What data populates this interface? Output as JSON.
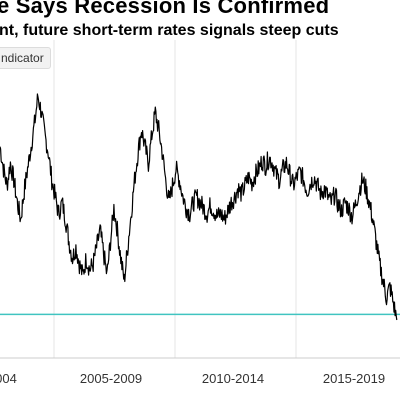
{
  "header": {
    "title": "e Says Recession Is Confirmed",
    "subtitle": "nt, future short-term rates signals steep cuts"
  },
  "legend": {
    "label": "ndicator"
  },
  "colors": {
    "series": "#000000",
    "threshold": "#40c4c0",
    "grid": "#e6e6e6",
    "axis": "#cccccc"
  },
  "chart_data": {
    "type": "line",
    "title": "e Says Recession Is Confirmed",
    "subtitle": "nt, future short-term rates signals steep cuts",
    "x_tick_labels": [
      "004",
      "2005-2009",
      "2010-2014",
      "2015-2019"
    ],
    "xlim": [
      2003.0,
      2020.3
    ],
    "ylim": [
      -2.0,
      3.5
    ],
    "grid": "vertical",
    "threshold_line": {
      "y": -1.4
    },
    "series": [
      {
        "name": "",
        "x": [
          2003.0,
          2003.15,
          2003.3,
          2003.45,
          2003.6,
          2003.75,
          2003.9,
          2004.05,
          2004.2,
          2004.35,
          2004.5,
          2004.65,
          2004.8,
          2004.95,
          2005.1,
          2005.25,
          2005.4,
          2005.55,
          2005.7,
          2005.85,
          2006.0,
          2006.15,
          2006.3,
          2006.45,
          2006.6,
          2006.75,
          2006.9,
          2007.05,
          2007.2,
          2007.35,
          2007.5,
          2007.65,
          2007.8,
          2007.95,
          2008.1,
          2008.25,
          2008.4,
          2008.55,
          2008.7,
          2008.85,
          2009.0,
          2009.15,
          2009.3,
          2009.45,
          2009.6,
          2009.75,
          2009.9,
          2010.05,
          2010.2,
          2010.35,
          2010.5,
          2010.65,
          2010.8,
          2010.95,
          2011.1,
          2011.25,
          2011.4,
          2011.55,
          2011.7,
          2011.85,
          2012.0,
          2012.15,
          2012.3,
          2012.45,
          2012.6,
          2012.75,
          2012.9,
          2013.05,
          2013.2,
          2013.35,
          2013.5,
          2013.65,
          2013.8,
          2013.95,
          2014.1,
          2014.25,
          2014.4,
          2014.55,
          2014.7,
          2014.85,
          2015.0,
          2015.15,
          2015.3,
          2015.45,
          2015.6,
          2015.75,
          2015.9,
          2016.05,
          2016.2,
          2016.35,
          2016.5,
          2016.65,
          2016.8,
          2016.95,
          2017.1,
          2017.25,
          2017.4,
          2017.55,
          2017.7,
          2017.85,
          2018.0,
          2018.15,
          2018.3,
          2018.45,
          2018.6,
          2018.75,
          2018.9,
          2019.05,
          2019.2,
          2019.35,
          2019.5,
          2019.65,
          2019.8,
          2019.95,
          2020.1,
          2020.25
        ],
        "y": [
          1.6,
          1.2,
          0.9,
          1.3,
          1.0,
          0.6,
          0.3,
          0.8,
          1.2,
          1.6,
          2.0,
          2.5,
          2.2,
          1.8,
          1.5,
          1.0,
          0.7,
          0.4,
          0.6,
          0.3,
          -0.1,
          -0.4,
          -0.2,
          -0.5,
          -0.7,
          -0.4,
          -0.6,
          -0.5,
          -0.2,
          0.1,
          -0.3,
          -0.7,
          -0.1,
          0.5,
          0.1,
          -0.4,
          -0.8,
          -0.2,
          0.4,
          1.0,
          1.5,
          1.9,
          1.6,
          1.3,
          1.8,
          2.2,
          1.9,
          1.5,
          1.0,
          0.6,
          0.9,
          1.2,
          1.0,
          0.7,
          0.5,
          0.4,
          0.6,
          0.7,
          0.6,
          0.5,
          0.4,
          0.55,
          0.45,
          0.35,
          0.4,
          0.3,
          0.45,
          0.6,
          0.7,
          0.85,
          0.75,
          0.9,
          1.05,
          0.95,
          1.1,
          1.2,
          1.35,
          1.25,
          1.4,
          1.3,
          1.1,
          1.0,
          1.2,
          1.3,
          1.1,
          0.9,
          1.05,
          1.15,
          1.0,
          0.8,
          0.95,
          1.05,
          0.9,
          0.75,
          0.85,
          0.7,
          0.6,
          0.75,
          0.55,
          0.45,
          0.6,
          0.5,
          0.35,
          0.55,
          0.8,
          1.0,
          0.85,
          0.6,
          0.3,
          -0.1,
          -0.5,
          -0.8,
          -1.1,
          -0.9,
          -1.2,
          -1.5
        ]
      }
    ]
  }
}
